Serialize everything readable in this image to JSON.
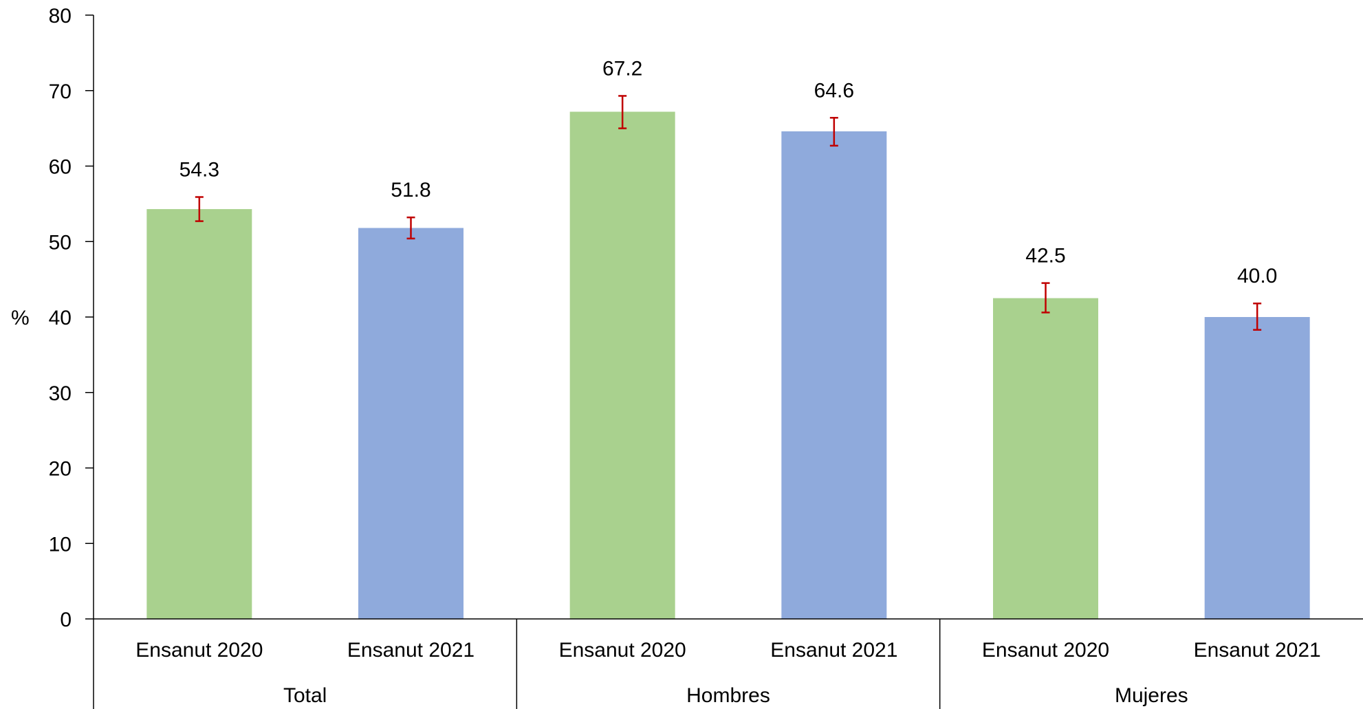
{
  "chart_data": {
    "type": "bar",
    "ylabel": "%",
    "ylim": [
      0,
      80
    ],
    "yticks": [
      0,
      10,
      20,
      30,
      40,
      50,
      60,
      70,
      80
    ],
    "groups": [
      {
        "label": "Total",
        "bars": [
          {
            "label": "Ensanut 2020",
            "value": 54.3,
            "value_label": "54.3",
            "err_low": 52.7,
            "err_high": 55.9,
            "color": "#a9d18e"
          },
          {
            "label": "Ensanut 2021",
            "value": 51.8,
            "value_label": "51.8",
            "err_low": 50.4,
            "err_high": 53.2,
            "color": "#8faadc"
          }
        ]
      },
      {
        "label": "Hombres",
        "bars": [
          {
            "label": "Ensanut 2020",
            "value": 67.2,
            "value_label": "67.2",
            "err_low": 65.0,
            "err_high": 69.3,
            "color": "#a9d18e"
          },
          {
            "label": "Ensanut 2021",
            "value": 64.6,
            "value_label": "64.6",
            "err_low": 62.7,
            "err_high": 66.4,
            "color": "#8faadc"
          }
        ]
      },
      {
        "label": "Mujeres",
        "bars": [
          {
            "label": "Ensanut 2020",
            "value": 42.5,
            "value_label": "42.5",
            "err_low": 40.6,
            "err_high": 44.5,
            "color": "#a9d18e"
          },
          {
            "label": "Ensanut 2021",
            "value": 40.0,
            "value_label": "40.0",
            "err_low": 38.3,
            "err_high": 41.8,
            "color": "#8faadc"
          }
        ]
      }
    ],
    "error_bar_color": "#c00000",
    "grid": false,
    "legend": "none"
  }
}
